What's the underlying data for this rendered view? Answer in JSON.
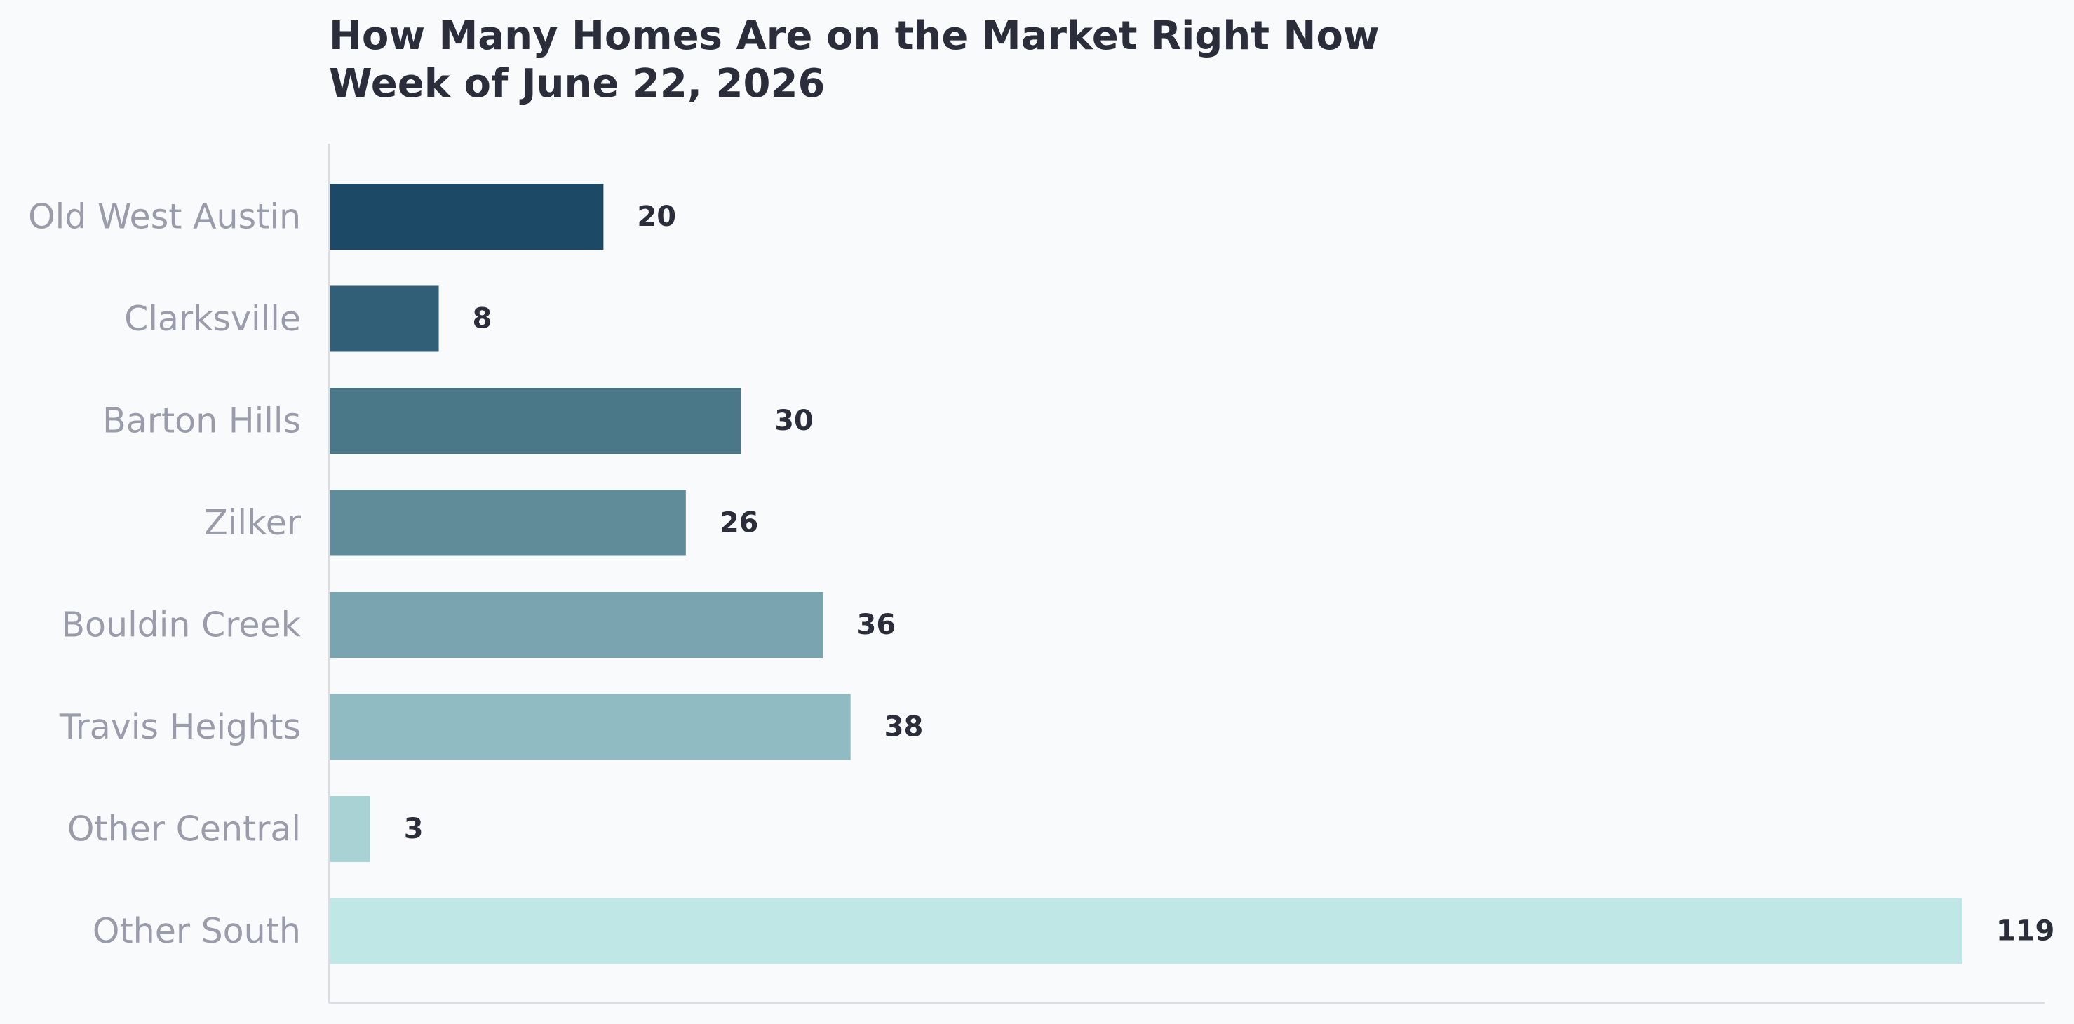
{
  "chart_data": {
    "type": "bar",
    "orientation": "horizontal",
    "title": [
      "How Many Homes Are on the Market Right Now",
      "Week of June 22, 2026"
    ],
    "categories": [
      "Old West Austin",
      "Clarksville",
      "Barton Hills",
      "Zilker",
      "Bouldin Creek",
      "Travis Heights",
      "Other Central",
      "Other South"
    ],
    "values": [
      20,
      8,
      30,
      26,
      36,
      38,
      3,
      119
    ],
    "colors": [
      "#1c4a66",
      "#315f77",
      "#4a7889",
      "#608c9a",
      "#7aa5b0",
      "#90bbc2",
      "#a8d2d4",
      "#bfe7e6"
    ],
    "axis_color": "#dcdde2",
    "xlabel": "",
    "ylabel": "",
    "grid": false,
    "legend": "none"
  }
}
